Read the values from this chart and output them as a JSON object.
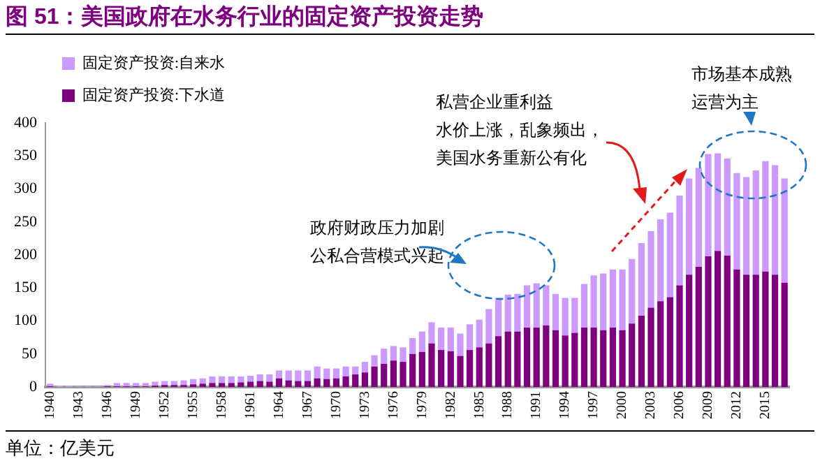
{
  "chart_data": {
    "type": "bar",
    "title": "图 51：美国政府在水务行业的固定资产投资走势",
    "categories": [
      "1940",
      null,
      null,
      "1943",
      null,
      null,
      "1946",
      null,
      null,
      "1949",
      null,
      null,
      "1952",
      null,
      null,
      "1955",
      null,
      null,
      "1958",
      null,
      null,
      "1961",
      null,
      null,
      "1964",
      null,
      null,
      "1967",
      null,
      null,
      "1970",
      null,
      null,
      "1973",
      null,
      null,
      "1976",
      null,
      null,
      "1979",
      null,
      null,
      "1982",
      null,
      null,
      "1985",
      null,
      null,
      "1988",
      null,
      null,
      "1991",
      null,
      null,
      "1994",
      null,
      null,
      "1997",
      null,
      null,
      "2000",
      null,
      null,
      "2003",
      null,
      null,
      "2006",
      null,
      null,
      "2009",
      null,
      null,
      "2012",
      null,
      null,
      "2015",
      null,
      null
    ],
    "stacked": true,
    "series": [
      {
        "name": "固定资产投资:下水道",
        "color": "#7f007f",
        "values": [
          1,
          0,
          0,
          0,
          0,
          0,
          1,
          1,
          1,
          1,
          1,
          2,
          3,
          3,
          3,
          4,
          5,
          6,
          6,
          6,
          7,
          8,
          9,
          8,
          13,
          10,
          9,
          9,
          13,
          12,
          13,
          16,
          19,
          22,
          31,
          35,
          40,
          38,
          50,
          53,
          66,
          56,
          54,
          47,
          56,
          60,
          66,
          77,
          84,
          84,
          90,
          90,
          93,
          86,
          78,
          82,
          90,
          90,
          86,
          90,
          86,
          96,
          108,
          120,
          130,
          136,
          154,
          170,
          182,
          198,
          206,
          199,
          178,
          170,
          170,
          175,
          170,
          158
        ]
      },
      {
        "name": "固定资产投资:自来水",
        "color": "#cc99ff",
        "values": [
          4,
          2,
          2,
          1,
          1,
          1,
          2,
          5,
          5,
          5,
          5,
          6,
          6,
          6,
          7,
          8,
          8,
          10,
          10,
          10,
          9,
          9,
          10,
          11,
          12,
          15,
          16,
          16,
          18,
          16,
          15,
          15,
          12,
          16,
          17,
          23,
          22,
          22,
          24,
          31,
          32,
          34,
          36,
          34,
          39,
          42,
          52,
          58,
          56,
          57,
          64,
          67,
          61,
          55,
          57,
          53,
          66,
          79,
          86,
          88,
          92,
          98,
          110,
          116,
          124,
          128,
          136,
          146,
          150,
          155,
          148,
          147,
          146,
          148,
          158,
          167,
          166,
          158
        ]
      }
    ],
    "ylim": [
      0,
      400
    ],
    "yticks": [
      0,
      50,
      100,
      150,
      200,
      250,
      300,
      350,
      400
    ],
    "grid": false,
    "legend": "top left",
    "annotations": [
      "政府财政压力加剧公私合营模式兴起",
      "私营企业重利益水价上涨，乱象频出，美国水务重新公有化",
      "市场基本成熟运营为主",
      "单位：亿美元"
    ]
  }
}
